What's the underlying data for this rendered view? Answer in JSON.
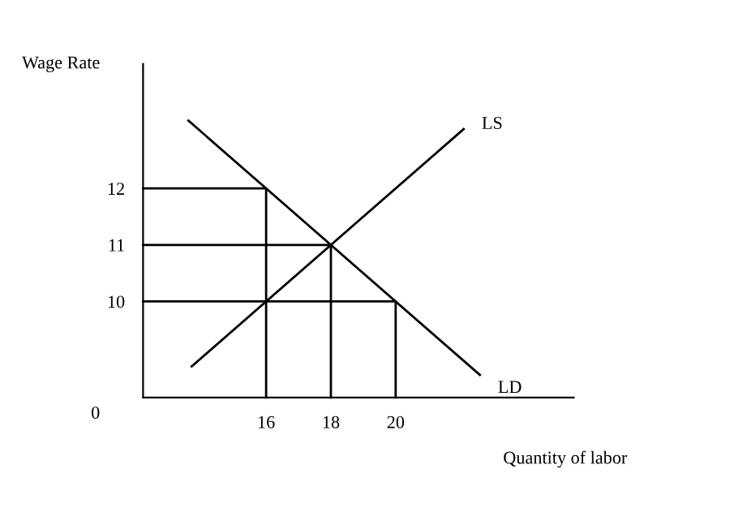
{
  "chart_data": {
    "type": "line",
    "xlabel": "Quantity of labor",
    "ylabel": "Wage Rate",
    "xlim": [
      12.2,
      25.5
    ],
    "ylim": [
      8.3,
      14.2
    ],
    "xticks": [
      16,
      18,
      20
    ],
    "yticks": [
      10,
      11,
      12
    ],
    "series": [
      {
        "name": "LS",
        "color": "#000000",
        "x": [
          13.7,
          22.1
        ],
        "values": [
          8.85,
          13.05
        ]
      },
      {
        "name": "LD",
        "color": "#000000",
        "x": [
          13.6,
          22.6
        ],
        "values": [
          13.2,
          8.7
        ]
      },
      {
        "color": "#000000",
        "x": [
          12.2,
          16,
          16
        ],
        "values": [
          12,
          12,
          8.3
        ]
      },
      {
        "color": "#000000",
        "x": [
          12.2,
          18,
          18
        ],
        "values": [
          11,
          11,
          8.3
        ]
      },
      {
        "color": "#000000",
        "x": [
          12.2,
          20,
          20
        ],
        "values": [
          10,
          10,
          8.3
        ]
      }
    ],
    "annotations": [
      "0"
    ],
    "grid": false,
    "legend": false,
    "marker": "none",
    "line_style": "solid"
  }
}
